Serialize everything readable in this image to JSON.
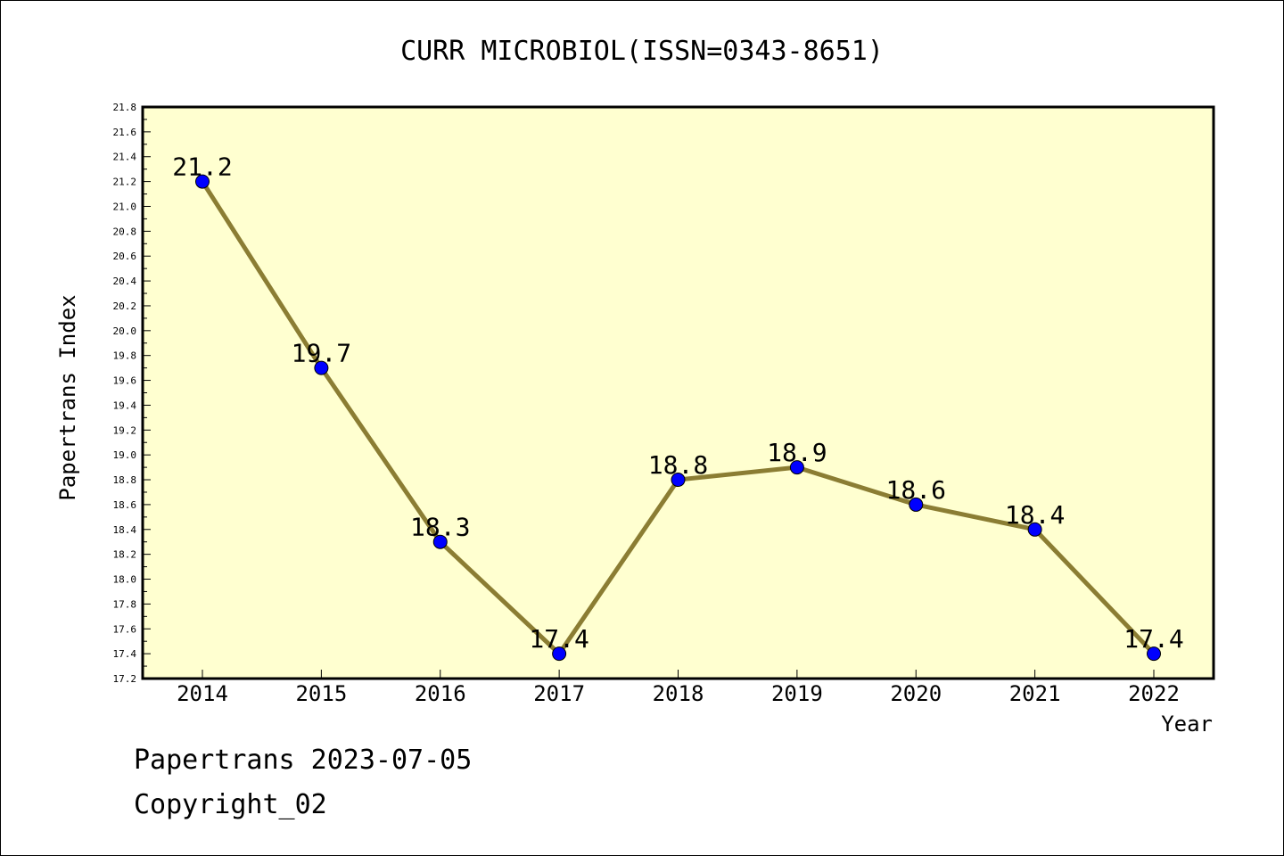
{
  "chart_data": {
    "type": "line",
    "title": "CURR MICROBIOL(ISSN=0343-8651)",
    "xlabel": "Year",
    "ylabel": "Papertrans Index",
    "categories": [
      "2014",
      "2015",
      "2016",
      "2017",
      "2018",
      "2019",
      "2020",
      "2021",
      "2022"
    ],
    "series": [
      {
        "values": [
          21.2,
          19.7,
          18.3,
          17.4,
          18.8,
          18.9,
          18.6,
          18.4,
          17.4
        ],
        "labels": [
          "21.2",
          "19.7",
          "18.3",
          "17.4",
          "18.8",
          "18.9",
          "18.6",
          "18.4",
          "17.4"
        ]
      }
    ],
    "ylim": [
      17.2,
      21.8
    ],
    "yticks": [
      "17.2",
      "17.4",
      "17.6",
      "17.8",
      "18.0",
      "18.2",
      "18.4",
      "18.6",
      "18.8",
      "19.0",
      "19.2",
      "19.4",
      "19.6",
      "19.8",
      "20.0",
      "20.2",
      "20.4",
      "20.6",
      "20.8",
      "21.0",
      "21.2",
      "21.4",
      "21.6",
      "21.8"
    ],
    "grid": false,
    "colors": {
      "plot_background": "#ffffd0",
      "line": "#8b7d33",
      "marker": "#0000ff"
    }
  },
  "footer": {
    "line1": "Papertrans 2023-07-05",
    "line2": "Copyright_02"
  }
}
